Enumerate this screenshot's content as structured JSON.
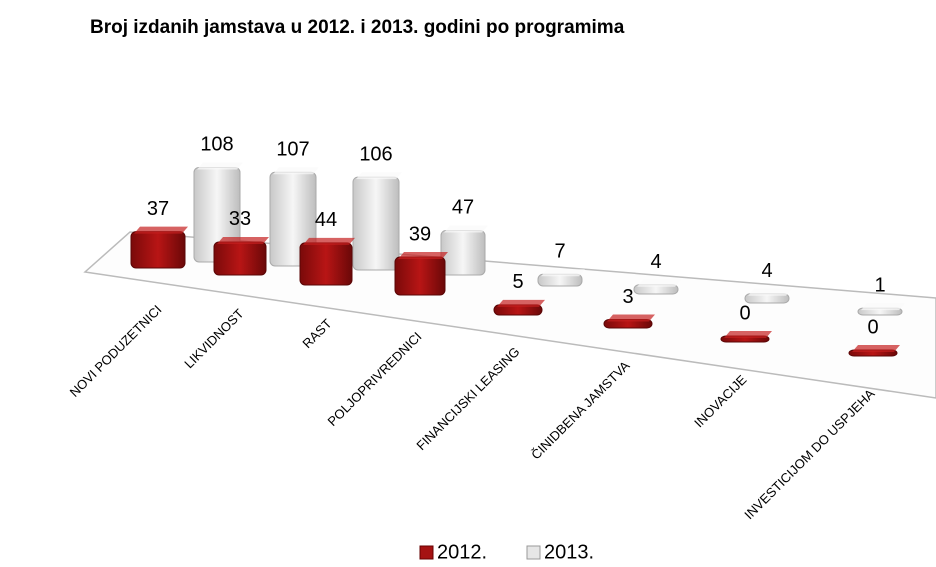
{
  "chart_data": {
    "type": "bar3d",
    "title": "Broj izdanih jamstava u 2012. i 2013. godini po programima",
    "categories": [
      "NOVI PODUZETNICI",
      "LIKVIDNOST",
      "RAST",
      "POLJOPRIVREDNICI",
      "FINANCIJSKI LEASING",
      "ČINIDBENA JAMSTVA",
      "INOVACIJE",
      "INVESTICIJOM DO USPJEHA"
    ],
    "series": [
      {
        "name": "2012.",
        "color": "#a51212",
        "values": [
          37,
          33,
          44,
          39,
          5,
          3,
          0,
          0
        ]
      },
      {
        "name": "2013.",
        "color": "#e6e6e6",
        "values": [
          108,
          107,
          106,
          47,
          7,
          4,
          4,
          1
        ]
      }
    ],
    "legend": "bottom"
  }
}
